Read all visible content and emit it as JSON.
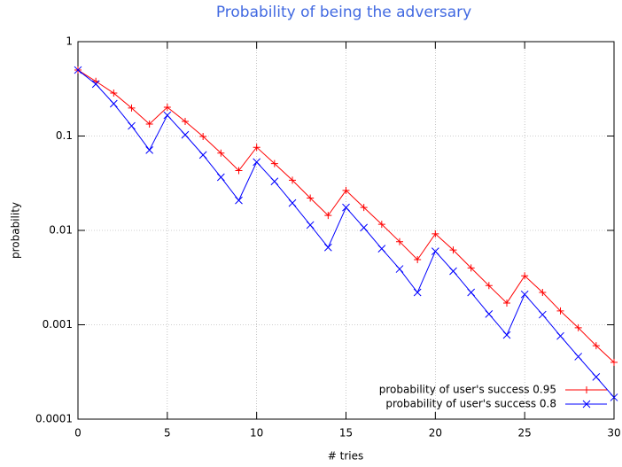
{
  "chart_data": {
    "type": "line",
    "title": "Probability of being the adversary",
    "x_label": "# tries",
    "y_label": "probability",
    "x": [
      0,
      1,
      2,
      3,
      4,
      5,
      6,
      7,
      8,
      9,
      10,
      11,
      12,
      13,
      14,
      15,
      16,
      17,
      18,
      19,
      20,
      21,
      22,
      23,
      24,
      25,
      26,
      27,
      28,
      29,
      30
    ],
    "series": [
      {
        "name": "probability of user's success 0.95",
        "color": "#ff0000",
        "marker": "plus",
        "values": [
          0.5,
          0.38,
          0.285,
          0.198,
          0.134,
          0.202,
          0.143,
          0.099,
          0.066,
          0.043,
          0.076,
          0.051,
          0.034,
          0.022,
          0.0144,
          0.0265,
          0.0175,
          0.0116,
          0.0076,
          0.0049,
          0.0092,
          0.0062,
          0.004,
          0.0026,
          0.0017,
          0.0033,
          0.0022,
          0.0014,
          0.00093,
          0.0006,
          0.0004
        ]
      },
      {
        "name": "probability of user's success 0.8",
        "color": "#0000ff",
        "marker": "cross",
        "values": [
          0.5,
          0.355,
          0.22,
          0.128,
          0.071,
          0.166,
          0.103,
          0.063,
          0.0366,
          0.0208,
          0.053,
          0.033,
          0.0195,
          0.0114,
          0.0066,
          0.0175,
          0.0107,
          0.0064,
          0.0039,
          0.0022,
          0.006,
          0.0037,
          0.0022,
          0.0013,
          0.00078,
          0.0021,
          0.00128,
          0.00076,
          0.00046,
          0.00028,
          0.00017
        ]
      }
    ],
    "xlim": [
      0,
      30
    ],
    "xticks": [
      0,
      5,
      10,
      15,
      20,
      25,
      30
    ],
    "ylim": [
      0.0001,
      1
    ],
    "yticks": [
      0.0001,
      0.001,
      0.01,
      0.1,
      1
    ],
    "log_y": true,
    "grid": true,
    "legend": "bottom right",
    "title_color": "#4169e1"
  }
}
